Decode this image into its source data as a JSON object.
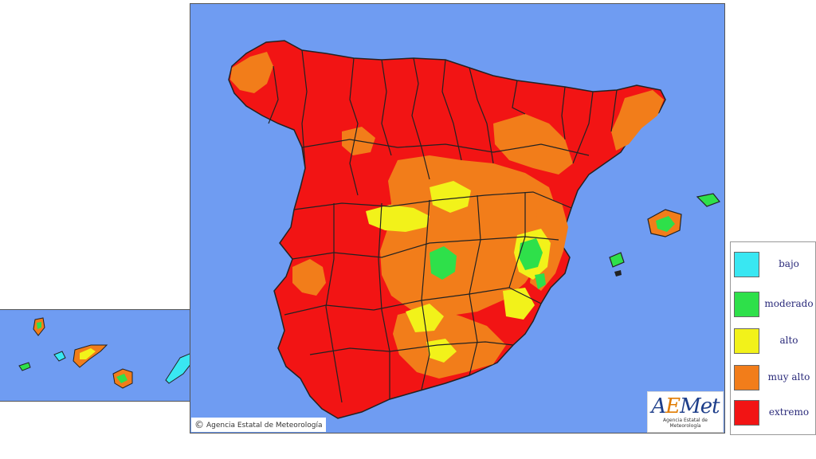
{
  "map": {
    "colors": {
      "sea": "#6f9cf2",
      "bajo": "#39e7f2",
      "moderado": "#2ee04a",
      "alto": "#f2f21a",
      "muy_alto": "#f27d1a",
      "extremo": "#f21414",
      "border": "#222222"
    }
  },
  "copyright": {
    "symbol": "©",
    "text": "Agencia Estatal de Meteorología"
  },
  "logo": {
    "brand_prefix": "A",
    "brand_accent": "E",
    "brand_suffix": "Met",
    "subtitle": "Agencia Estatal de Meteorología"
  },
  "legend": {
    "items": [
      {
        "label": "bajo",
        "color": "#39e7f2"
      },
      {
        "label": "moderado",
        "color": "#2ee04a"
      },
      {
        "label": "alto",
        "color": "#f2f21a"
      },
      {
        "label": "muy alto",
        "color": "#f27d1a"
      },
      {
        "label": "extremo",
        "color": "#f21414"
      }
    ]
  }
}
